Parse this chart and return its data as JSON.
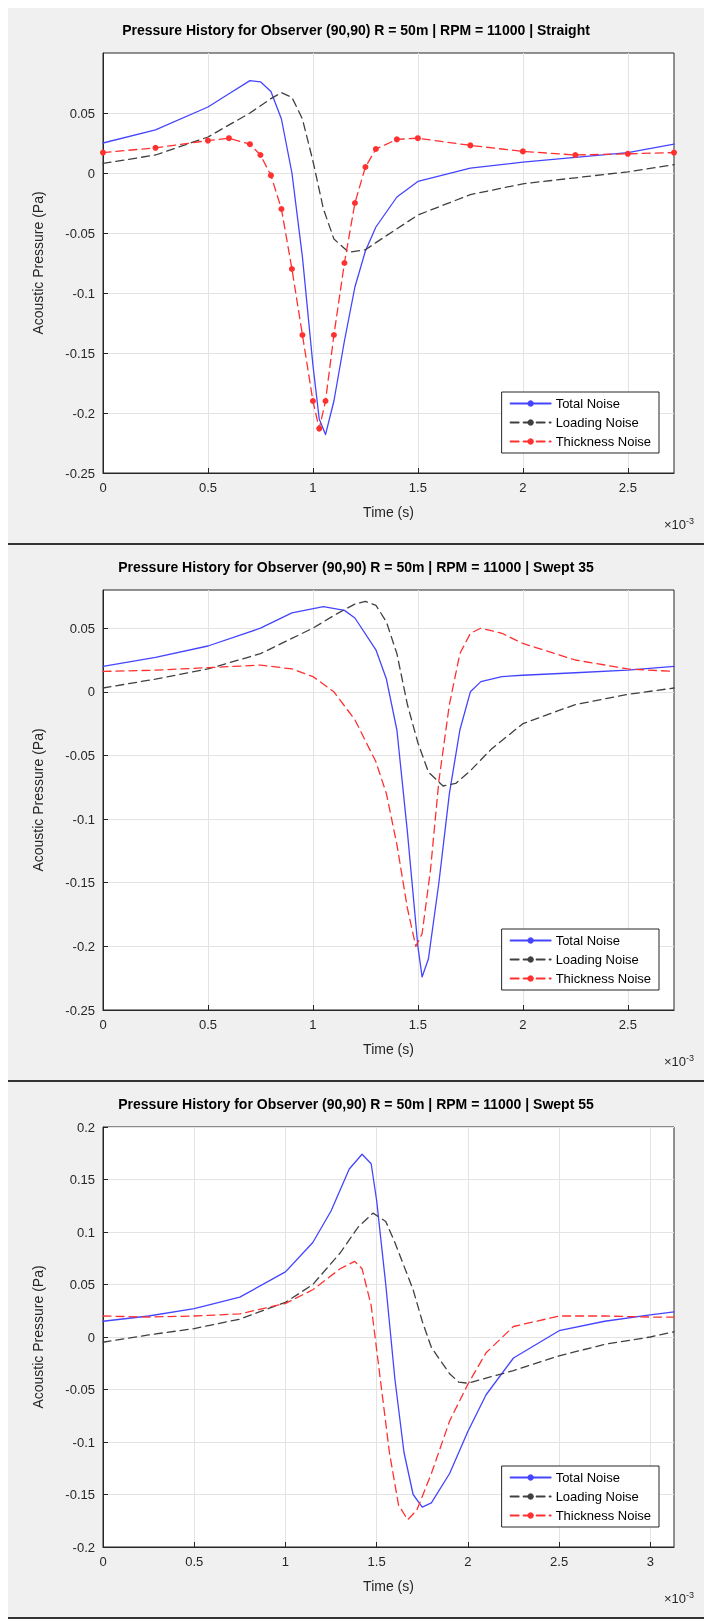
{
  "chart_data": [
    {
      "type": "line",
      "title": "Pressure History for Observer (90,90) R = 50m | RPM = 11000 | Straight",
      "xlabel": "Time (s)",
      "ylabel": "Acoustic Pressure (Pa)",
      "annotations": [
        "×10$^{-3}$"
      ],
      "xlim": [
        0,
        2.72
      ],
      "xticks": [
        0,
        0.5,
        1,
        1.5,
        2,
        2.5
      ],
      "ylim": [
        -0.25,
        0.1
      ],
      "yticks": [
        -0.25,
        -0.2,
        -0.15,
        -0.1,
        -0.05,
        0,
        0.05
      ],
      "grid": true,
      "legend": "bottom right",
      "marker": "none",
      "series": [
        {
          "name": "Total Noise",
          "color": "#4545ff",
          "line_style": "solid",
          "x": [
            0,
            0.25,
            0.5,
            0.6,
            0.7,
            0.75,
            0.8,
            0.85,
            0.9,
            0.95,
            1.0,
            1.03,
            1.06,
            1.1,
            1.15,
            1.2,
            1.25,
            1.3,
            1.4,
            1.5,
            1.75,
            2.0,
            2.25,
            2.5,
            2.72
          ],
          "values": [
            0.025,
            0.036,
            0.055,
            0.066,
            0.077,
            0.076,
            0.068,
            0.045,
            0.0,
            -0.07,
            -0.16,
            -0.205,
            -0.218,
            -0.19,
            -0.14,
            -0.095,
            -0.065,
            -0.045,
            -0.02,
            -0.007,
            0.004,
            0.009,
            0.013,
            0.017,
            0.024
          ]
        },
        {
          "name": "Loading Noise",
          "color": "#404040",
          "line_style": "dashed",
          "x": [
            0,
            0.25,
            0.5,
            0.7,
            0.8,
            0.85,
            0.9,
            0.95,
            1.0,
            1.05,
            1.1,
            1.17,
            1.25,
            1.3,
            1.5,
            1.75,
            2.0,
            2.25,
            2.5,
            2.72
          ],
          "values": [
            0.008,
            0.015,
            0.03,
            0.05,
            0.062,
            0.067,
            0.063,
            0.045,
            0.01,
            -0.03,
            -0.055,
            -0.066,
            -0.064,
            -0.058,
            -0.035,
            -0.018,
            -0.009,
            -0.004,
            0.001,
            0.007
          ]
        },
        {
          "name": "Thickness Noise",
          "color": "#ff3030",
          "line_style": "dashed",
          "marker": "circle",
          "x": [
            0,
            0.25,
            0.5,
            0.6,
            0.7,
            0.75,
            0.8,
            0.85,
            0.9,
            0.95,
            1.0,
            1.03,
            1.06,
            1.1,
            1.15,
            1.2,
            1.25,
            1.3,
            1.4,
            1.5,
            1.75,
            2.0,
            2.25,
            2.5,
            2.72
          ],
          "values": [
            0.017,
            0.021,
            0.027,
            0.029,
            0.024,
            0.015,
            -0.002,
            -0.03,
            -0.08,
            -0.135,
            -0.19,
            -0.213,
            -0.19,
            -0.135,
            -0.075,
            -0.025,
            0.005,
            0.02,
            0.028,
            0.029,
            0.023,
            0.018,
            0.015,
            0.016,
            0.017
          ]
        }
      ]
    },
    {
      "type": "line",
      "title": "Pressure History for Observer (90,90) R = 50m | RPM = 11000 | Swept 35",
      "xlabel": "Time (s)",
      "ylabel": "Acoustic Pressure (Pa)",
      "annotations": [
        "×10$^{-3}$"
      ],
      "xlim": [
        0,
        2.72
      ],
      "xticks": [
        0,
        0.5,
        1,
        1.5,
        2,
        2.5
      ],
      "ylim": [
        -0.25,
        0.08
      ],
      "yticks": [
        -0.25,
        -0.2,
        -0.15,
        -0.1,
        -0.05,
        0,
        0.05
      ],
      "grid": true,
      "legend": "bottom right",
      "marker": "none",
      "series": [
        {
          "name": "Total Noise",
          "color": "#4545ff",
          "line_style": "solid",
          "x": [
            0,
            0.25,
            0.5,
            0.75,
            0.9,
            1.05,
            1.15,
            1.2,
            1.3,
            1.35,
            1.4,
            1.45,
            1.5,
            1.52,
            1.55,
            1.6,
            1.65,
            1.7,
            1.75,
            1.8,
            1.9,
            2.0,
            2.25,
            2.5,
            2.72
          ],
          "values": [
            0.02,
            0.027,
            0.036,
            0.05,
            0.062,
            0.067,
            0.064,
            0.058,
            0.033,
            0.01,
            -0.03,
            -0.11,
            -0.2,
            -0.224,
            -0.21,
            -0.15,
            -0.08,
            -0.03,
            0.0,
            0.008,
            0.012,
            0.013,
            0.015,
            0.017,
            0.02
          ]
        },
        {
          "name": "Loading Noise",
          "color": "#404040",
          "line_style": "dashed",
          "x": [
            0,
            0.25,
            0.5,
            0.75,
            1.0,
            1.1,
            1.2,
            1.25,
            1.3,
            1.35,
            1.4,
            1.45,
            1.5,
            1.55,
            1.62,
            1.68,
            1.75,
            1.85,
            2.0,
            2.25,
            2.5,
            2.72
          ],
          "values": [
            0.003,
            0.01,
            0.018,
            0.03,
            0.05,
            0.06,
            0.069,
            0.071,
            0.068,
            0.055,
            0.03,
            -0.01,
            -0.04,
            -0.063,
            -0.074,
            -0.072,
            -0.062,
            -0.045,
            -0.025,
            -0.01,
            -0.002,
            0.003
          ]
        },
        {
          "name": "Thickness Noise",
          "color": "#ff3030",
          "line_style": "dashed",
          "x": [
            0,
            0.25,
            0.5,
            0.75,
            0.9,
            1.0,
            1.1,
            1.2,
            1.3,
            1.35,
            1.4,
            1.45,
            1.49,
            1.52,
            1.56,
            1.6,
            1.65,
            1.7,
            1.75,
            1.8,
            1.9,
            2.0,
            2.25,
            2.5,
            2.72
          ],
          "values": [
            0.016,
            0.017,
            0.019,
            0.021,
            0.018,
            0.012,
            0.0,
            -0.022,
            -0.055,
            -0.08,
            -0.12,
            -0.17,
            -0.2,
            -0.19,
            -0.14,
            -0.07,
            -0.01,
            0.03,
            0.046,
            0.05,
            0.046,
            0.038,
            0.025,
            0.018,
            0.016
          ]
        }
      ]
    },
    {
      "type": "line",
      "title": "Pressure History for Observer (90,90) R = 50m | RPM = 11000 | Swept 55",
      "xlabel": "Time (s)",
      "ylabel": "Acoustic Pressure (Pa)",
      "annotations": [
        "×10$^{-3}$"
      ],
      "xlim": [
        0,
        3.13
      ],
      "xticks": [
        0,
        0.5,
        1,
        1.5,
        2,
        2.5,
        3
      ],
      "ylim": [
        -0.2,
        0.2
      ],
      "yticks": [
        -0.2,
        -0.15,
        -0.1,
        -0.05,
        0,
        0.05,
        0.1,
        0.15,
        0.2
      ],
      "grid": true,
      "legend": "bottom right",
      "marker": "none",
      "series": [
        {
          "name": "Total Noise",
          "color": "#4545ff",
          "line_style": "solid",
          "x": [
            0,
            0.25,
            0.5,
            0.75,
            1.0,
            1.15,
            1.25,
            1.35,
            1.42,
            1.47,
            1.5,
            1.55,
            1.6,
            1.65,
            1.7,
            1.75,
            1.8,
            1.9,
            2.0,
            2.1,
            2.25,
            2.5,
            2.75,
            3.0,
            3.13
          ],
          "values": [
            0.015,
            0.02,
            0.027,
            0.038,
            0.062,
            0.09,
            0.12,
            0.16,
            0.174,
            0.165,
            0.13,
            0.05,
            -0.04,
            -0.11,
            -0.15,
            -0.162,
            -0.158,
            -0.13,
            -0.09,
            -0.055,
            -0.02,
            0.006,
            0.015,
            0.021,
            0.024
          ]
        },
        {
          "name": "Loading Noise",
          "color": "#404040",
          "line_style": "dashed",
          "x": [
            0,
            0.25,
            0.5,
            0.75,
            1.0,
            1.15,
            1.3,
            1.4,
            1.48,
            1.55,
            1.6,
            1.7,
            1.75,
            1.8,
            1.9,
            1.95,
            2.0,
            2.25,
            2.5,
            2.75,
            3.0,
            3.13
          ],
          "values": [
            -0.005,
            0.002,
            0.008,
            0.017,
            0.033,
            0.05,
            0.08,
            0.105,
            0.118,
            0.11,
            0.09,
            0.045,
            0.015,
            -0.01,
            -0.035,
            -0.043,
            -0.044,
            -0.032,
            -0.018,
            -0.007,
            0.0,
            0.005
          ]
        },
        {
          "name": "Thickness Noise",
          "color": "#ff3030",
          "line_style": "dashed",
          "x": [
            0,
            0.25,
            0.5,
            0.75,
            1.0,
            1.15,
            1.3,
            1.38,
            1.42,
            1.47,
            1.52,
            1.57,
            1.62,
            1.67,
            1.72,
            1.8,
            1.9,
            2.0,
            2.1,
            2.25,
            2.5,
            2.75,
            3.0,
            3.13
          ],
          "values": [
            0.02,
            0.019,
            0.02,
            0.022,
            0.032,
            0.045,
            0.065,
            0.072,
            0.065,
            0.03,
            -0.04,
            -0.11,
            -0.16,
            -0.174,
            -0.165,
            -0.13,
            -0.08,
            -0.045,
            -0.015,
            0.01,
            0.02,
            0.02,
            0.019,
            0.019
          ]
        }
      ]
    }
  ]
}
